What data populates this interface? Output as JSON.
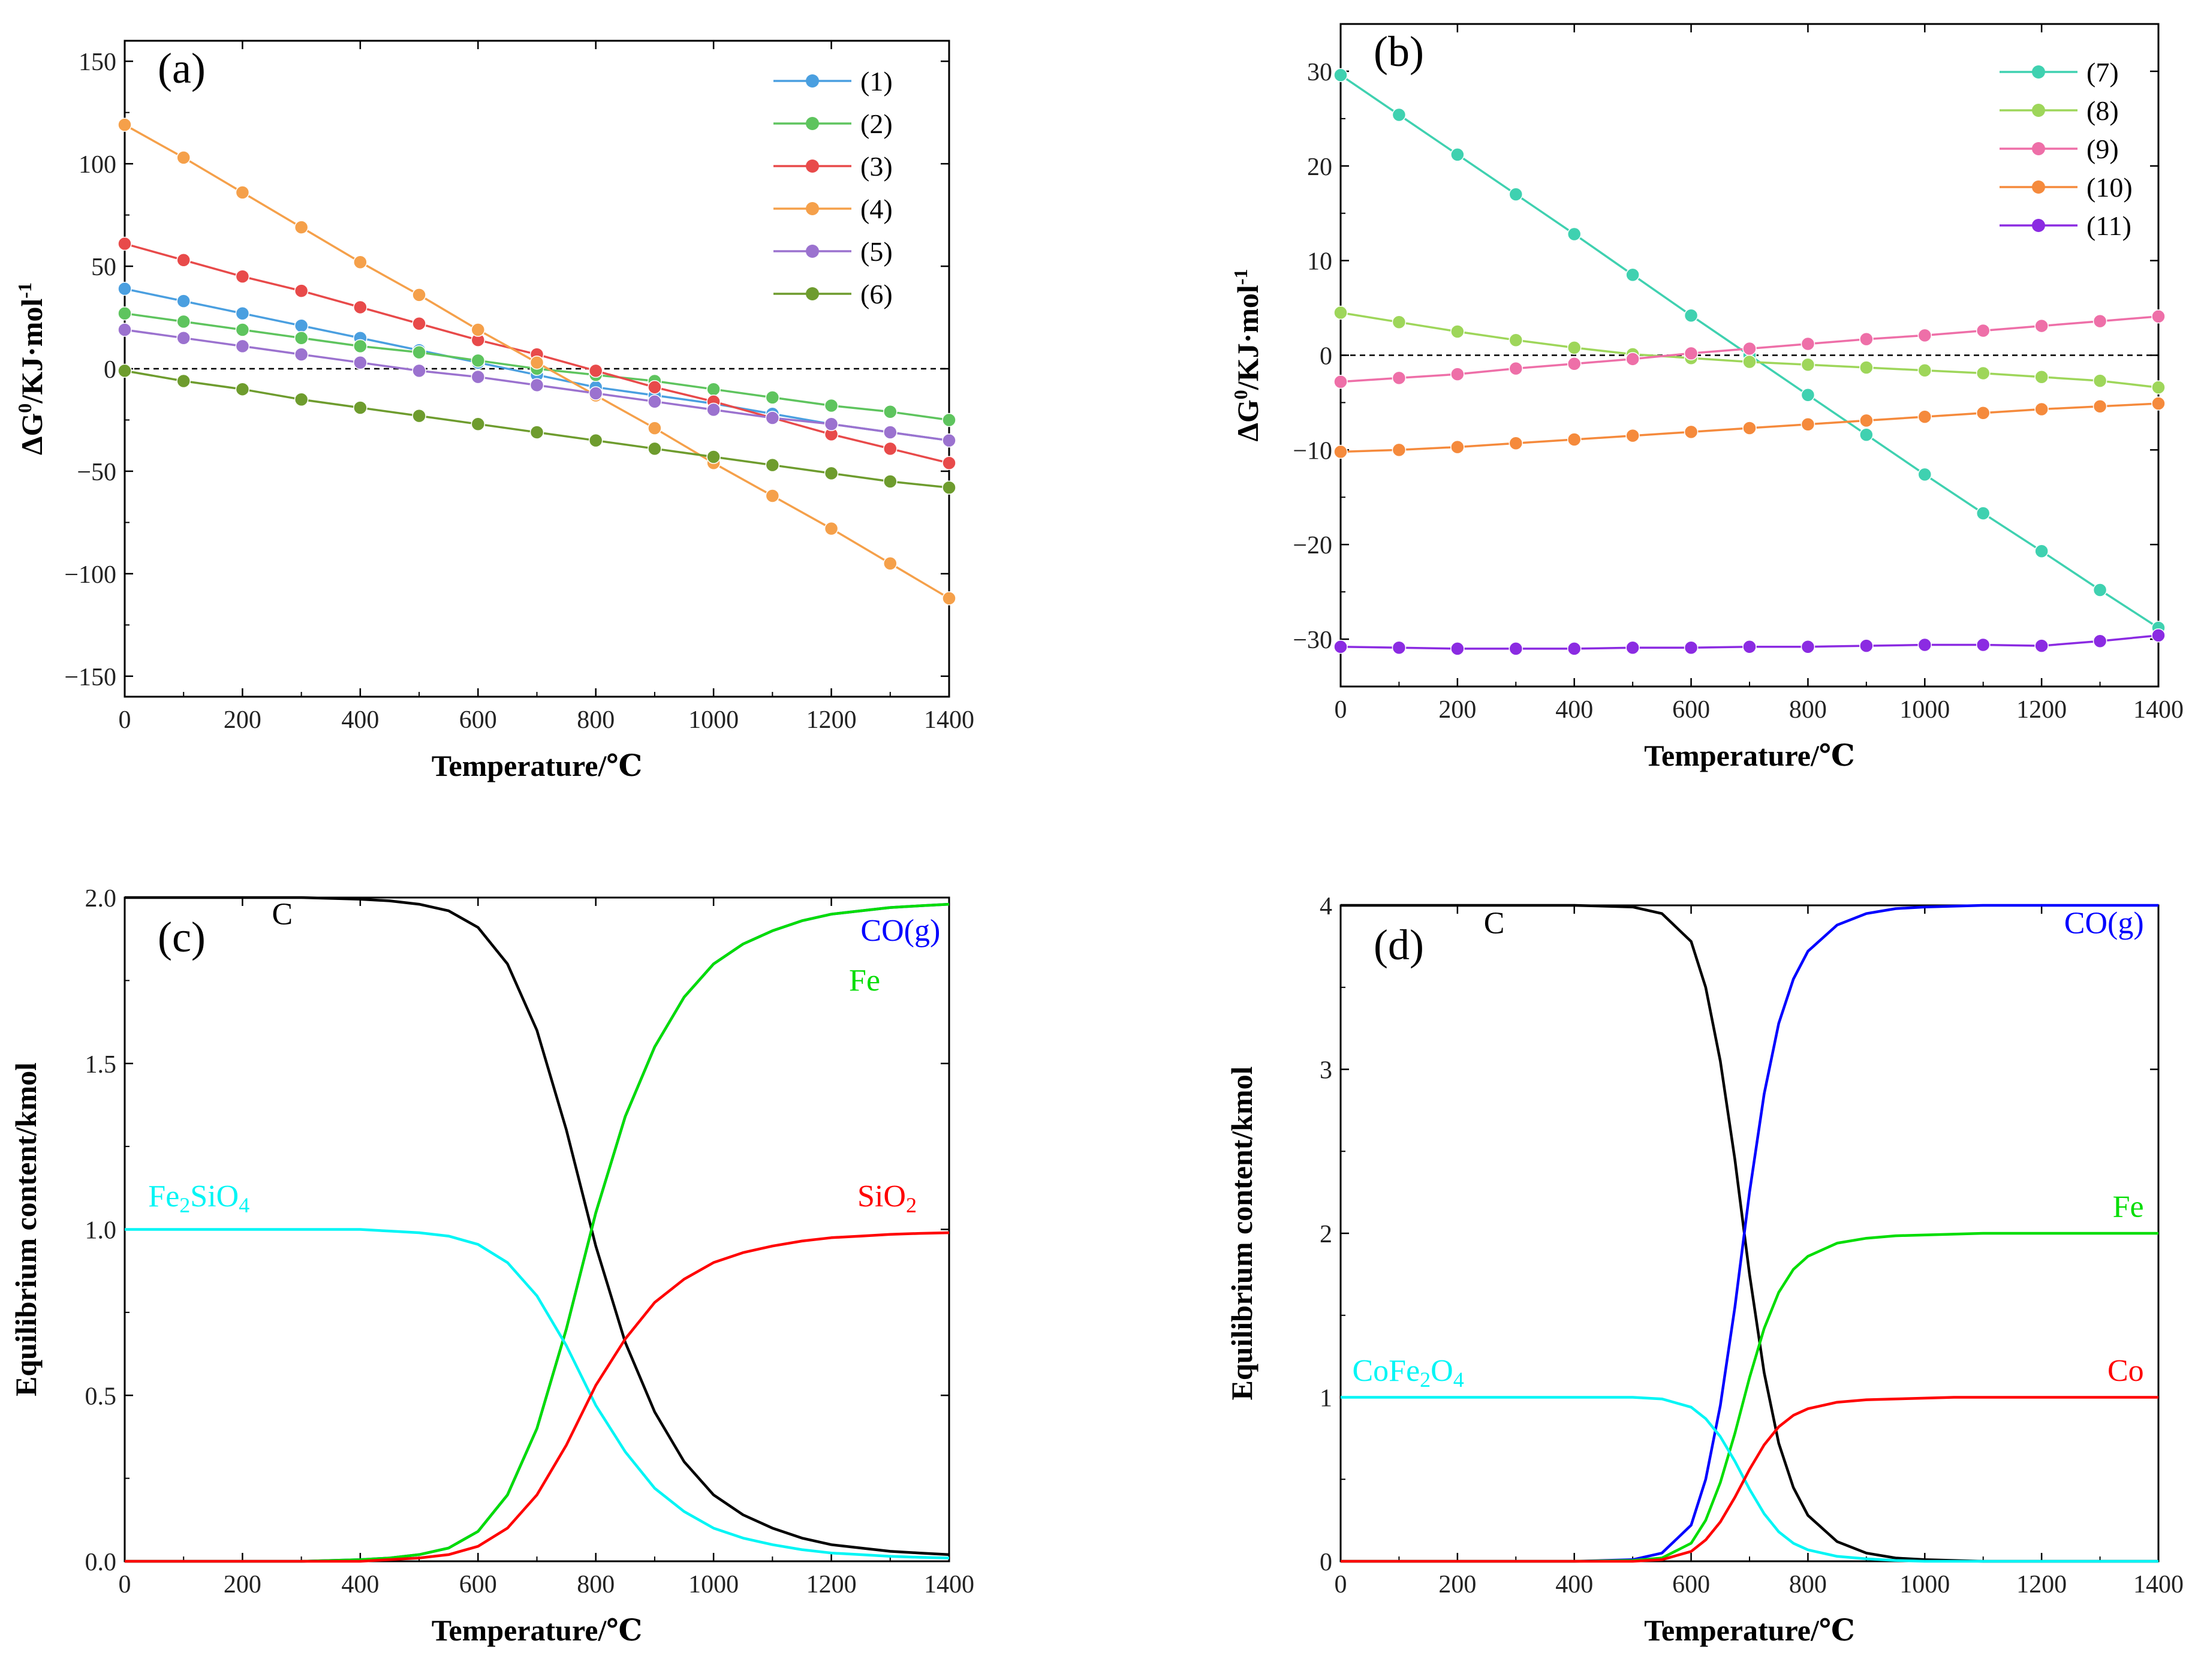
{
  "chart_data": [
    {
      "id": "a",
      "type": "line",
      "panel_label": "(a)",
      "xlabel": "Temperature/℃",
      "ylabel": {
        "main": "ΔG",
        "sup1": "0",
        "mid": "/KJ·mol",
        "sup2": "-1"
      },
      "xlim": [
        0,
        1400
      ],
      "ylim": [
        -160,
        160
      ],
      "xticks": [
        0,
        200,
        400,
        600,
        800,
        1000,
        1200,
        1400
      ],
      "yticks": [
        -150,
        -100,
        -50,
        0,
        50,
        100,
        150
      ],
      "ytick_labels": [
        "−150",
        "−100",
        "−50",
        "0",
        "50",
        "100",
        "150"
      ],
      "zero_line": true,
      "legend_position": "top-right",
      "x": [
        0,
        100,
        200,
        300,
        400,
        500,
        600,
        700,
        800,
        900,
        1000,
        1100,
        1200,
        1300,
        1400
      ],
      "series": [
        {
          "name": "(1)",
          "color": "#4a9fe0",
          "values": [
            39,
            33,
            27,
            21,
            15,
            9,
            3,
            -3,
            -9,
            -13,
            -17,
            -22,
            -27,
            -31,
            -35
          ]
        },
        {
          "name": "(2)",
          "color": "#5ec45e",
          "values": [
            27,
            23,
            19,
            15,
            11,
            8,
            4,
            0,
            -3,
            -6,
            -10,
            -14,
            -18,
            -21,
            -25
          ]
        },
        {
          "name": "(3)",
          "color": "#e84a4a",
          "values": [
            61,
            53,
            45,
            38,
            30,
            22,
            14,
            7,
            -1,
            -9,
            -16,
            -24,
            -32,
            -39,
            -46
          ]
        },
        {
          "name": "(4)",
          "color": "#f5a04a",
          "values": [
            119,
            103,
            86,
            69,
            52,
            36,
            19,
            3,
            -13,
            -29,
            -46,
            -62,
            -78,
            -95,
            -112
          ]
        },
        {
          "name": "(5)",
          "color": "#9b72cf",
          "values": [
            19,
            15,
            11,
            7,
            3,
            -1,
            -4,
            -8,
            -12,
            -16,
            -20,
            -24,
            -27,
            -31,
            -35
          ]
        },
        {
          "name": "(6)",
          "color": "#6e9c2e",
          "values": [
            -1,
            -6,
            -10,
            -15,
            -19,
            -23,
            -27,
            -31,
            -35,
            -39,
            -43,
            -47,
            -51,
            -55,
            -58
          ]
        }
      ]
    },
    {
      "id": "b",
      "type": "line",
      "panel_label": "(b)",
      "xlabel": "Temperature/℃",
      "ylabel": {
        "main": "ΔG",
        "sup1": "0",
        "mid": "/KJ·mol",
        "sup2": "-1"
      },
      "xlim": [
        0,
        1400
      ],
      "ylim": [
        -35,
        35
      ],
      "xticks": [
        0,
        200,
        400,
        600,
        800,
        1000,
        1200,
        1400
      ],
      "yticks": [
        -30,
        -20,
        -10,
        0,
        10,
        20,
        30
      ],
      "ytick_labels": [
        "−30",
        "−20",
        "−10",
        "0",
        "10",
        "20",
        "30"
      ],
      "zero_line": true,
      "legend_position": "top-right",
      "x": [
        0,
        100,
        200,
        300,
        400,
        500,
        600,
        700,
        800,
        900,
        1000,
        1100,
        1200,
        1300,
        1400
      ],
      "series": [
        {
          "name": "(7)",
          "color": "#3fd1b0",
          "values": [
            29.6,
            25.4,
            21.2,
            17.0,
            12.8,
            8.5,
            4.2,
            0,
            -4.2,
            -8.4,
            -12.6,
            -16.7,
            -20.7,
            -24.8,
            -28.8
          ]
        },
        {
          "name": "(8)",
          "color": "#9ed65a",
          "values": [
            4.5,
            3.5,
            2.5,
            1.6,
            0.8,
            0.1,
            -0.3,
            -0.7,
            -1.0,
            -1.3,
            -1.6,
            -1.9,
            -2.3,
            -2.7,
            -3.4
          ]
        },
        {
          "name": "(9)",
          "color": "#ee6fa8",
          "values": [
            -2.8,
            -2.4,
            -2.0,
            -1.4,
            -0.9,
            -0.4,
            0.2,
            0.7,
            1.2,
            1.7,
            2.1,
            2.6,
            3.1,
            3.6,
            4.1
          ]
        },
        {
          "name": "(10)",
          "color": "#f58a3c",
          "values": [
            -10.2,
            -10.0,
            -9.7,
            -9.3,
            -8.9,
            -8.5,
            -8.1,
            -7.7,
            -7.3,
            -6.9,
            -6.5,
            -6.1,
            -5.7,
            -5.4,
            -5.1
          ]
        },
        {
          "name": "(11)",
          "color": "#8b2be2",
          "values": [
            -30.8,
            -30.9,
            -31.0,
            -31.0,
            -31.0,
            -30.9,
            -30.9,
            -30.8,
            -30.8,
            -30.7,
            -30.6,
            -30.6,
            -30.7,
            -30.2,
            -29.6
          ]
        }
      ]
    },
    {
      "id": "c",
      "type": "line",
      "panel_label": "(c)",
      "xlabel": "Temperature/℃",
      "ylabel": "Equilibrium content/kmol",
      "xlim": [
        0,
        1400
      ],
      "ylim": [
        0,
        2.0
      ],
      "xticks": [
        0,
        200,
        400,
        600,
        800,
        1000,
        1200,
        1400
      ],
      "yticks": [
        0,
        0.5,
        1.0,
        1.5,
        2.0
      ],
      "ytick_labels": [
        "0.0",
        "0.5",
        "1.0",
        "1.5",
        "2.0"
      ],
      "x": [
        0,
        100,
        200,
        300,
        400,
        450,
        500,
        550,
        600,
        650,
        700,
        750,
        800,
        850,
        900,
        950,
        1000,
        1050,
        1100,
        1150,
        1200,
        1250,
        1300,
        1350,
        1400
      ],
      "series": [
        {
          "name": "C",
          "color": "#000000",
          "values": [
            2.0,
            2.0,
            2.0,
            2.0,
            1.995,
            1.99,
            1.98,
            1.96,
            1.91,
            1.8,
            1.6,
            1.3,
            0.95,
            0.66,
            0.45,
            0.3,
            0.2,
            0.14,
            0.1,
            0.07,
            0.05,
            0.04,
            0.03,
            0.025,
            0.02
          ]
        },
        {
          "name": "CO(g)",
          "color": "#0000ff",
          "values": [
            0.0,
            0.0,
            0.0,
            0.0,
            0.005,
            0.01,
            0.02,
            0.04,
            0.09,
            0.2,
            0.4,
            0.7,
            1.05,
            1.34,
            1.55,
            1.7,
            1.8,
            1.86,
            1.9,
            1.93,
            1.95,
            1.96,
            1.97,
            1.975,
            1.98
          ]
        },
        {
          "name": "Fe",
          "color": "#00dd00",
          "values": [
            0.0,
            0.0,
            0.0,
            0.0,
            0.005,
            0.01,
            0.02,
            0.04,
            0.09,
            0.2,
            0.4,
            0.7,
            1.05,
            1.34,
            1.55,
            1.7,
            1.8,
            1.86,
            1.9,
            1.93,
            1.95,
            1.96,
            1.97,
            1.975,
            1.98
          ]
        },
        {
          "name": "Fe2SiO4",
          "color": "#00f5f5",
          "values": [
            1.0,
            1.0,
            1.0,
            1.0,
            1.0,
            0.995,
            0.99,
            0.98,
            0.955,
            0.9,
            0.8,
            0.65,
            0.47,
            0.33,
            0.22,
            0.15,
            0.1,
            0.07,
            0.05,
            0.035,
            0.025,
            0.02,
            0.015,
            0.012,
            0.01
          ]
        },
        {
          "name": "SiO2",
          "color": "#ff0000",
          "values": [
            0.0,
            0.0,
            0.0,
            0.0,
            0.0,
            0.005,
            0.01,
            0.02,
            0.045,
            0.1,
            0.2,
            0.35,
            0.53,
            0.67,
            0.78,
            0.85,
            0.9,
            0.93,
            0.95,
            0.965,
            0.975,
            0.98,
            0.985,
            0.988,
            0.99
          ]
        }
      ],
      "labels": [
        {
          "text": "C",
          "color": "#000000",
          "x": 250,
          "y": 1.92
        },
        {
          "text": "CO(g)",
          "color": "#0000ff",
          "x": 1385,
          "y": 1.87,
          "anchor": "end"
        },
        {
          "text": "Fe",
          "color": "#00dd00",
          "x": 1230,
          "y": 1.72
        },
        {
          "text": "Fe",
          "sub": "2",
          "text2": "SiO",
          "sub2": "4",
          "color": "#00f5f5",
          "x": 40,
          "y": 1.07
        },
        {
          "text": "SiO",
          "sub": "2",
          "color": "#ff0000",
          "x": 1345,
          "y": 1.07,
          "anchor": "end"
        }
      ]
    },
    {
      "id": "d",
      "type": "line",
      "panel_label": "(d)",
      "xlabel": "Temperature/℃",
      "ylabel": "Equilibrium content/kmol",
      "xlim": [
        0,
        1400
      ],
      "ylim": [
        0,
        4
      ],
      "xticks": [
        0,
        200,
        400,
        600,
        800,
        1000,
        1200,
        1400
      ],
      "yticks": [
        0,
        1,
        2,
        3,
        4
      ],
      "ytick_labels": [
        "0",
        "1",
        "2",
        "3",
        "4"
      ],
      "x": [
        0,
        100,
        200,
        300,
        400,
        500,
        550,
        600,
        625,
        650,
        675,
        700,
        725,
        750,
        775,
        800,
        850,
        900,
        950,
        1000,
        1050,
        1100,
        1200,
        1300,
        1400
      ],
      "series": [
        {
          "name": "C",
          "color": "#000000",
          "values": [
            4.0,
            4.0,
            4.0,
            4.0,
            4.0,
            3.99,
            3.95,
            3.78,
            3.5,
            3.05,
            2.45,
            1.75,
            1.15,
            0.72,
            0.45,
            0.28,
            0.12,
            0.05,
            0.02,
            0.01,
            0.005,
            0.0,
            0.0,
            0.0,
            0.0
          ]
        },
        {
          "name": "CO(g)",
          "color": "#0000ff",
          "values": [
            0.0,
            0.0,
            0.0,
            0.0,
            0.0,
            0.01,
            0.05,
            0.22,
            0.5,
            0.95,
            1.55,
            2.25,
            2.85,
            3.28,
            3.55,
            3.72,
            3.88,
            3.95,
            3.98,
            3.99,
            3.995,
            4.0,
            4.0,
            4.0,
            4.0
          ]
        },
        {
          "name": "Fe",
          "color": "#00dd00",
          "values": [
            0.0,
            0.0,
            0.0,
            0.0,
            0.0,
            0.005,
            0.02,
            0.11,
            0.25,
            0.48,
            0.78,
            1.12,
            1.42,
            1.64,
            1.78,
            1.86,
            1.94,
            1.97,
            1.985,
            1.99,
            1.995,
            2.0,
            2.0,
            2.0,
            2.0
          ]
        },
        {
          "name": "CoFe2O4",
          "color": "#00f5f5",
          "values": [
            1.0,
            1.0,
            1.0,
            1.0,
            1.0,
            1.0,
            0.99,
            0.94,
            0.87,
            0.76,
            0.61,
            0.44,
            0.29,
            0.18,
            0.11,
            0.07,
            0.03,
            0.015,
            0.005,
            0.0,
            0.0,
            0.0,
            0.0,
            0.0,
            0.0
          ]
        },
        {
          "name": "Co",
          "color": "#ff0000",
          "values": [
            0.0,
            0.0,
            0.0,
            0.0,
            0.0,
            0.0,
            0.01,
            0.06,
            0.13,
            0.24,
            0.39,
            0.56,
            0.71,
            0.82,
            0.89,
            0.93,
            0.97,
            0.985,
            0.99,
            0.995,
            1.0,
            1.0,
            1.0,
            1.0,
            1.0
          ]
        }
      ],
      "labels": [
        {
          "text": "C",
          "color": "#000000",
          "x": 245,
          "y": 3.83
        },
        {
          "text": "CO(g)",
          "color": "#0000ff",
          "x": 1375,
          "y": 3.83,
          "anchor": "end"
        },
        {
          "text": "Fe",
          "color": "#00dd00",
          "x": 1375,
          "y": 2.1,
          "anchor": "end"
        },
        {
          "text": "CoFe",
          "sub": "2",
          "text2": "O",
          "sub2": "4",
          "color": "#00f5f5",
          "x": 20,
          "y": 1.1
        },
        {
          "text": "Co",
          "color": "#ff0000",
          "x": 1375,
          "y": 1.1,
          "anchor": "end"
        }
      ]
    }
  ]
}
